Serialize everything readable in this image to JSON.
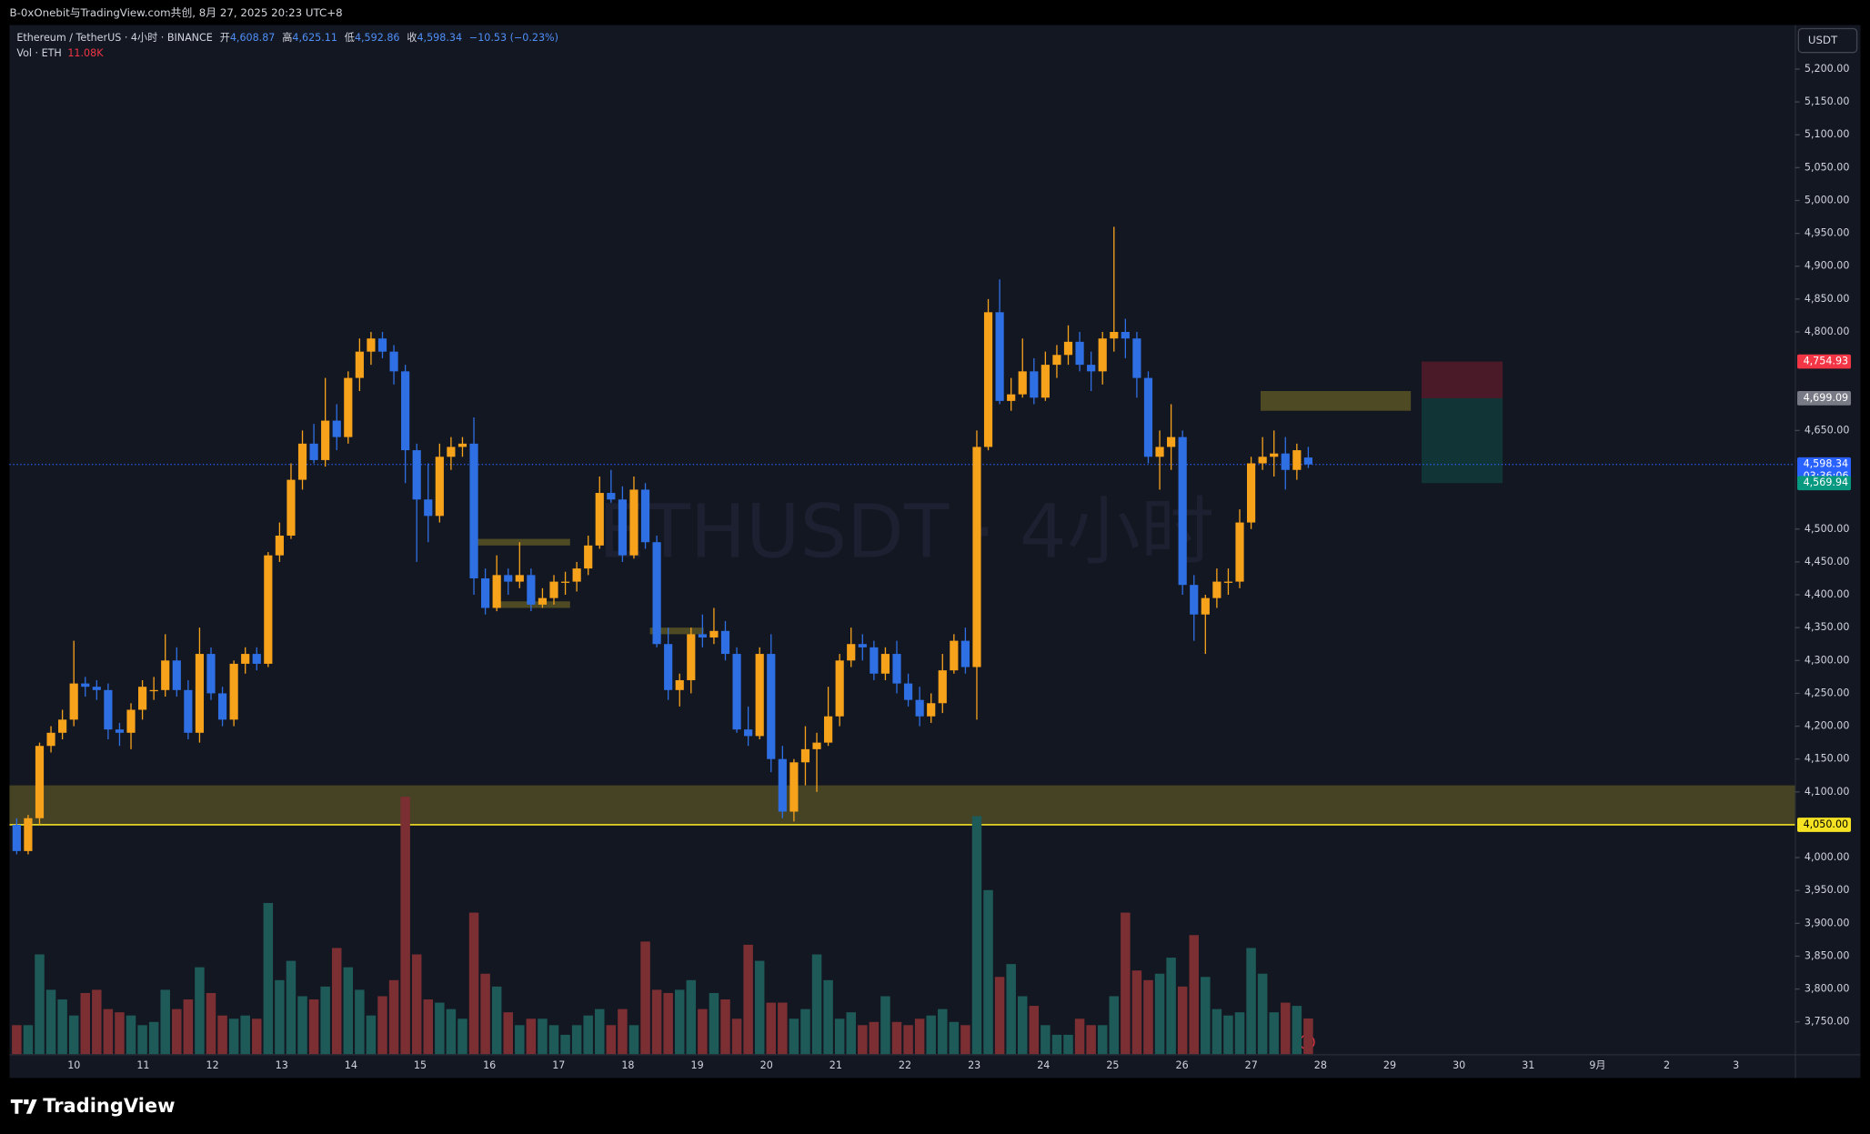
{
  "top_bar": {
    "text": "B-0xOnebit与TradingView.com共创, 8月 27, 2025 20:23 UTC+8"
  },
  "footer": {
    "logo": "TradingView"
  },
  "chart_data": {
    "type": "candlestick",
    "symbol": "Ethereum / TetherUS · 4小时 · BINANCE",
    "ohlc_labels": [
      "开",
      "高",
      "低",
      "收"
    ],
    "ohlc_values": [
      "4,608.87",
      "4,625.11",
      "4,592.86",
      "4,598.34"
    ],
    "change": "−10.53 (−0.23%)",
    "volume_title": "Vol · ETH",
    "volume_value": "11.08K",
    "watermark": "ETHUSDT · 4小时",
    "currency": "USDT",
    "up_color": "#f7a21b",
    "down_color": "#2f6fe4",
    "vol_up_color": "#1e5a58",
    "vol_down_color": "#7b2f33",
    "ylim": [
      3701,
      5267
    ],
    "volume_lim": [
      0,
      320
    ],
    "grid": false,
    "yticks": [
      {
        "value": 5200,
        "label": "5,200.00"
      },
      {
        "value": 5150,
        "label": "5,150.00"
      },
      {
        "value": 5100,
        "label": "5,100.00"
      },
      {
        "value": 5050,
        "label": "5,050.00"
      },
      {
        "value": 5000,
        "label": "5,000.00"
      },
      {
        "value": 4950,
        "label": "4,950.00"
      },
      {
        "value": 4900,
        "label": "4,900.00"
      },
      {
        "value": 4850,
        "label": "4,850.00"
      },
      {
        "value": 4800,
        "label": "4,800.00"
      },
      {
        "value": 4650,
        "label": "4,650.00"
      },
      {
        "value": 4500,
        "label": "4,500.00"
      },
      {
        "value": 4450,
        "label": "4,450.00"
      },
      {
        "value": 4400,
        "label": "4,400.00"
      },
      {
        "value": 4350,
        "label": "4,350.00"
      },
      {
        "value": 4300,
        "label": "4,300.00"
      },
      {
        "value": 4250,
        "label": "4,250.00"
      },
      {
        "value": 4200,
        "label": "4,200.00"
      },
      {
        "value": 4150,
        "label": "4,150.00"
      },
      {
        "value": 4100,
        "label": "4,100.00"
      },
      {
        "value": 4000,
        "label": "4,000.00"
      },
      {
        "value": 3950,
        "label": "3,950.00"
      },
      {
        "value": 3900,
        "label": "3,900.00"
      },
      {
        "value": 3850,
        "label": "3,850.00"
      },
      {
        "value": 3800,
        "label": "3,800.00"
      },
      {
        "value": 3750,
        "label": "3,750.00"
      }
    ],
    "x_labels": [
      "10",
      "11",
      "12",
      "13",
      "14",
      "15",
      "16",
      "17",
      "18",
      "19",
      "20",
      "21",
      "22",
      "23",
      "24",
      "25",
      "26",
      "27",
      "28",
      "29",
      "30",
      "31",
      "9月",
      "2",
      "3"
    ],
    "price_tags": [
      {
        "value": 4754.93,
        "label": "4,754.93",
        "color": "#f23645"
      },
      {
        "value": 4699.09,
        "label": "4,699.09",
        "color": "#787b86"
      },
      {
        "value": 4598.34,
        "label": "4,598.34",
        "color": "#2962ff"
      },
      {
        "value": 4569.94,
        "label": "4,569.94",
        "color": "#089981"
      },
      {
        "value": 4050,
        "label": "4,050.00",
        "color": "#f5e323"
      }
    ],
    "countdown": "03:36:06",
    "zones": [
      [
        4050,
        4110
      ],
      [
        4475,
        4485
      ],
      [
        4380,
        4390
      ],
      [
        4340,
        4350
      ],
      [
        4680,
        4710
      ]
    ],
    "candles": [
      {
        "o": 4050,
        "h": 4060,
        "l": 4005,
        "c": 4010,
        "v": 9
      },
      {
        "o": 4010,
        "h": 4065,
        "l": 4005,
        "c": 4060,
        "v": 9
      },
      {
        "o": 4060,
        "h": 4175,
        "l": 4050,
        "c": 4170,
        "v": 31
      },
      {
        "o": 4170,
        "h": 4200,
        "l": 4160,
        "c": 4190,
        "v": 20
      },
      {
        "o": 4190,
        "h": 4225,
        "l": 4180,
        "c": 4210,
        "v": 17
      },
      {
        "o": 4210,
        "h": 4330,
        "l": 4200,
        "c": 4265,
        "v": 12
      },
      {
        "o": 4265,
        "h": 4275,
        "l": 4245,
        "c": 4260,
        "v": 19
      },
      {
        "o": 4260,
        "h": 4270,
        "l": 4240,
        "c": 4255,
        "v": 20
      },
      {
        "o": 4255,
        "h": 4265,
        "l": 4180,
        "c": 4195,
        "v": 14
      },
      {
        "o": 4195,
        "h": 4205,
        "l": 4170,
        "c": 4190,
        "v": 13
      },
      {
        "o": 4190,
        "h": 4235,
        "l": 4165,
        "c": 4225,
        "v": 12
      },
      {
        "o": 4225,
        "h": 4270,
        "l": 4210,
        "c": 4260,
        "v": 9
      },
      {
        "o": 4255,
        "h": 4275,
        "l": 4240,
        "c": 4255,
        "v": 10
      },
      {
        "o": 4255,
        "h": 4340,
        "l": 4245,
        "c": 4300,
        "v": 20
      },
      {
        "o": 4300,
        "h": 4320,
        "l": 4245,
        "c": 4255,
        "v": 14
      },
      {
        "o": 4255,
        "h": 4270,
        "l": 4180,
        "c": 4190,
        "v": 17
      },
      {
        "o": 4190,
        "h": 4350,
        "l": 4175,
        "c": 4310,
        "v": 27
      },
      {
        "o": 4310,
        "h": 4320,
        "l": 4240,
        "c": 4250,
        "v": 19
      },
      {
        "o": 4250,
        "h": 4260,
        "l": 4200,
        "c": 4210,
        "v": 12
      },
      {
        "o": 4210,
        "h": 4300,
        "l": 4200,
        "c": 4295,
        "v": 11
      },
      {
        "o": 4295,
        "h": 4320,
        "l": 4280,
        "c": 4310,
        "v": 12
      },
      {
        "o": 4310,
        "h": 4320,
        "l": 4285,
        "c": 4295,
        "v": 11
      },
      {
        "o": 4295,
        "h": 4465,
        "l": 4290,
        "c": 4460,
        "v": 47
      },
      {
        "o": 4460,
        "h": 4510,
        "l": 4450,
        "c": 4490,
        "v": 23
      },
      {
        "o": 4490,
        "h": 4600,
        "l": 4485,
        "c": 4575,
        "v": 29
      },
      {
        "o": 4575,
        "h": 4650,
        "l": 4560,
        "c": 4630,
        "v": 18
      },
      {
        "o": 4630,
        "h": 4660,
        "l": 4600,
        "c": 4605,
        "v": 17
      },
      {
        "o": 4605,
        "h": 4730,
        "l": 4595,
        "c": 4665,
        "v": 21
      },
      {
        "o": 4665,
        "h": 4690,
        "l": 4620,
        "c": 4640,
        "v": 33
      },
      {
        "o": 4640,
        "h": 4740,
        "l": 4630,
        "c": 4730,
        "v": 27
      },
      {
        "o": 4730,
        "h": 4790,
        "l": 4710,
        "c": 4770,
        "v": 20
      },
      {
        "o": 4770,
        "h": 4800,
        "l": 4750,
        "c": 4790,
        "v": 12
      },
      {
        "o": 4790,
        "h": 4800,
        "l": 4760,
        "c": 4770,
        "v": 18
      },
      {
        "o": 4770,
        "h": 4780,
        "l": 4720,
        "c": 4740,
        "v": 23
      },
      {
        "o": 4740,
        "h": 4750,
        "l": 4570,
        "c": 4620,
        "v": 80
      },
      {
        "o": 4620,
        "h": 4630,
        "l": 4450,
        "c": 4545,
        "v": 31
      },
      {
        "o": 4545,
        "h": 4600,
        "l": 4480,
        "c": 4520,
        "v": 17
      },
      {
        "o": 4520,
        "h": 4630,
        "l": 4510,
        "c": 4610,
        "v": 16
      },
      {
        "o": 4610,
        "h": 4640,
        "l": 4590,
        "c": 4625,
        "v": 14
      },
      {
        "o": 4625,
        "h": 4640,
        "l": 4610,
        "c": 4630,
        "v": 11
      },
      {
        "o": 4630,
        "h": 4670,
        "l": 4400,
        "c": 4425,
        "v": 44
      },
      {
        "o": 4425,
        "h": 4440,
        "l": 4370,
        "c": 4380,
        "v": 25
      },
      {
        "o": 4380,
        "h": 4460,
        "l": 4375,
        "c": 4430,
        "v": 21
      },
      {
        "o": 4430,
        "h": 4440,
        "l": 4400,
        "c": 4420,
        "v": 13
      },
      {
        "o": 4420,
        "h": 4480,
        "l": 4410,
        "c": 4430,
        "v": 9
      },
      {
        "o": 4430,
        "h": 4440,
        "l": 4375,
        "c": 4385,
        "v": 11
      },
      {
        "o": 4385,
        "h": 4410,
        "l": 4380,
        "c": 4395,
        "v": 11
      },
      {
        "o": 4395,
        "h": 4430,
        "l": 4385,
        "c": 4420,
        "v": 9
      },
      {
        "o": 4420,
        "h": 4435,
        "l": 4400,
        "c": 4420,
        "v": 6
      },
      {
        "o": 4420,
        "h": 4450,
        "l": 4405,
        "c": 4440,
        "v": 9
      },
      {
        "o": 4440,
        "h": 4490,
        "l": 4430,
        "c": 4475,
        "v": 12
      },
      {
        "o": 4475,
        "h": 4580,
        "l": 4470,
        "c": 4555,
        "v": 14
      },
      {
        "o": 4555,
        "h": 4590,
        "l": 4540,
        "c": 4545,
        "v": 9
      },
      {
        "o": 4545,
        "h": 4565,
        "l": 4450,
        "c": 4460,
        "v": 14
      },
      {
        "o": 4460,
        "h": 4580,
        "l": 4455,
        "c": 4560,
        "v": 9
      },
      {
        "o": 4560,
        "h": 4570,
        "l": 4470,
        "c": 4480,
        "v": 35
      },
      {
        "o": 4480,
        "h": 4490,
        "l": 4320,
        "c": 4325,
        "v": 20
      },
      {
        "o": 4325,
        "h": 4350,
        "l": 4240,
        "c": 4255,
        "v": 19
      },
      {
        "o": 4255,
        "h": 4280,
        "l": 4230,
        "c": 4270,
        "v": 20
      },
      {
        "o": 4270,
        "h": 4350,
        "l": 4250,
        "c": 4340,
        "v": 23
      },
      {
        "o": 4340,
        "h": 4370,
        "l": 4320,
        "c": 4335,
        "v": 14
      },
      {
        "o": 4335,
        "h": 4380,
        "l": 4325,
        "c": 4345,
        "v": 19
      },
      {
        "o": 4345,
        "h": 4360,
        "l": 4300,
        "c": 4310,
        "v": 17
      },
      {
        "o": 4310,
        "h": 4320,
        "l": 4190,
        "c": 4195,
        "v": 11
      },
      {
        "o": 4195,
        "h": 4230,
        "l": 4170,
        "c": 4185,
        "v": 34
      },
      {
        "o": 4185,
        "h": 4320,
        "l": 4180,
        "c": 4310,
        "v": 29
      },
      {
        "o": 4310,
        "h": 4340,
        "l": 4130,
        "c": 4150,
        "v": 16
      },
      {
        "o": 4150,
        "h": 4170,
        "l": 4060,
        "c": 4070,
        "v": 16
      },
      {
        "o": 4070,
        "h": 4150,
        "l": 4055,
        "c": 4145,
        "v": 11
      },
      {
        "o": 4145,
        "h": 4200,
        "l": 4110,
        "c": 4165,
        "v": 14
      },
      {
        "o": 4165,
        "h": 4190,
        "l": 4100,
        "c": 4175,
        "v": 31
      },
      {
        "o": 4175,
        "h": 4260,
        "l": 4170,
        "c": 4215,
        "v": 23
      },
      {
        "o": 4215,
        "h": 4310,
        "l": 4200,
        "c": 4300,
        "v": 11
      },
      {
        "o": 4300,
        "h": 4350,
        "l": 4290,
        "c": 4325,
        "v": 13
      },
      {
        "o": 4325,
        "h": 4340,
        "l": 4300,
        "c": 4320,
        "v": 9
      },
      {
        "o": 4320,
        "h": 4330,
        "l": 4270,
        "c": 4280,
        "v": 10
      },
      {
        "o": 4280,
        "h": 4320,
        "l": 4270,
        "c": 4310,
        "v": 18
      },
      {
        "o": 4310,
        "h": 4330,
        "l": 4250,
        "c": 4265,
        "v": 10
      },
      {
        "o": 4265,
        "h": 4280,
        "l": 4230,
        "c": 4240,
        "v": 9
      },
      {
        "o": 4240,
        "h": 4260,
        "l": 4200,
        "c": 4215,
        "v": 11
      },
      {
        "o": 4215,
        "h": 4250,
        "l": 4205,
        "c": 4235,
        "v": 12
      },
      {
        "o": 4235,
        "h": 4310,
        "l": 4220,
        "c": 4285,
        "v": 14
      },
      {
        "o": 4285,
        "h": 4340,
        "l": 4280,
        "c": 4330,
        "v": 10
      },
      {
        "o": 4330,
        "h": 4350,
        "l": 4280,
        "c": 4290,
        "v": 9
      },
      {
        "o": 4290,
        "h": 4650,
        "l": 4210,
        "c": 4625,
        "v": 74
      },
      {
        "o": 4625,
        "h": 4850,
        "l": 4620,
        "c": 4830,
        "v": 51
      },
      {
        "o": 4830,
        "h": 4880,
        "l": 4690,
        "c": 4695,
        "v": 24
      },
      {
        "o": 4695,
        "h": 4730,
        "l": 4680,
        "c": 4705,
        "v": 28
      },
      {
        "o": 4705,
        "h": 4790,
        "l": 4700,
        "c": 4740,
        "v": 18
      },
      {
        "o": 4740,
        "h": 4760,
        "l": 4690,
        "c": 4700,
        "v": 15
      },
      {
        "o": 4700,
        "h": 4770,
        "l": 4695,
        "c": 4750,
        "v": 9
      },
      {
        "o": 4750,
        "h": 4780,
        "l": 4730,
        "c": 4765,
        "v": 6
      },
      {
        "o": 4765,
        "h": 4810,
        "l": 4750,
        "c": 4785,
        "v": 6
      },
      {
        "o": 4785,
        "h": 4800,
        "l": 4740,
        "c": 4750,
        "v": 11
      },
      {
        "o": 4750,
        "h": 4770,
        "l": 4710,
        "c": 4740,
        "v": 9
      },
      {
        "o": 4740,
        "h": 4800,
        "l": 4720,
        "c": 4790,
        "v": 9
      },
      {
        "o": 4790,
        "h": 4960,
        "l": 4770,
        "c": 4800,
        "v": 18
      },
      {
        "o": 4800,
        "h": 4820,
        "l": 4760,
        "c": 4790,
        "v": 44
      },
      {
        "o": 4790,
        "h": 4800,
        "l": 4700,
        "c": 4730,
        "v": 26
      },
      {
        "o": 4730,
        "h": 4740,
        "l": 4600,
        "c": 4610,
        "v": 23
      },
      {
        "o": 4610,
        "h": 4650,
        "l": 4560,
        "c": 4625,
        "v": 25
      },
      {
        "o": 4625,
        "h": 4690,
        "l": 4590,
        "c": 4640,
        "v": 30
      },
      {
        "o": 4640,
        "h": 4650,
        "l": 4400,
        "c": 4415,
        "v": 21
      },
      {
        "o": 4415,
        "h": 4430,
        "l": 4330,
        "c": 4370,
        "v": 37
      },
      {
        "o": 4370,
        "h": 4400,
        "l": 4310,
        "c": 4395,
        "v": 24
      },
      {
        "o": 4395,
        "h": 4440,
        "l": 4380,
        "c": 4420,
        "v": 14
      },
      {
        "o": 4420,
        "h": 4440,
        "l": 4400,
        "c": 4420,
        "v": 12
      },
      {
        "o": 4420,
        "h": 4530,
        "l": 4410,
        "c": 4510,
        "v": 13
      },
      {
        "o": 4510,
        "h": 4610,
        "l": 4500,
        "c": 4600,
        "v": 33
      },
      {
        "o": 4600,
        "h": 4640,
        "l": 4590,
        "c": 4610,
        "v": 25
      },
      {
        "o": 4610,
        "h": 4650,
        "l": 4580,
        "c": 4615,
        "v": 13
      },
      {
        "o": 4615,
        "h": 4640,
        "l": 4560,
        "c": 4590,
        "v": 16
      },
      {
        "o": 4590,
        "h": 4630,
        "l": 4575,
        "c": 4620,
        "v": 15
      },
      {
        "o": 4608.87,
        "h": 4625.11,
        "l": 4592.86,
        "c": 4598.34,
        "v": 11.08
      }
    ]
  }
}
